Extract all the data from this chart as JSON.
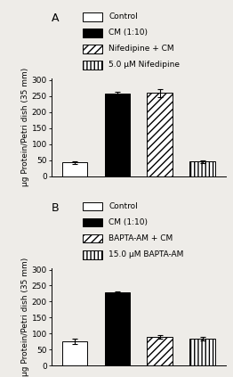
{
  "panel_A": {
    "label": "A",
    "values": [
      43,
      257,
      260,
      45
    ],
    "errors": [
      4,
      5,
      13,
      5
    ],
    "ylim": [
      0,
      305
    ],
    "yticks": [
      0,
      50,
      100,
      150,
      200,
      250,
      300
    ],
    "ylabel": "μg Protein/Petri dish (35 mm)",
    "legend_labels": [
      "Control",
      "CM (1:10)",
      "Nifedipine + CM",
      "5.0 μM Nifedipine"
    ],
    "bar_styles": [
      "open",
      "black",
      "hlines",
      "vlines"
    ]
  },
  "panel_B": {
    "label": "B",
    "values": [
      75,
      228,
      90,
      85
    ],
    "errors": [
      8,
      4,
      6,
      6
    ],
    "ylim": [
      0,
      305
    ],
    "yticks": [
      0,
      50,
      100,
      150,
      200,
      250,
      300
    ],
    "ylabel": "μg Protein/Petri dish (35 mm)",
    "legend_labels": [
      "Control",
      "CM (1:10)",
      "BAPTA-AM + CM",
      "15.0 μM BAPTA-AM"
    ],
    "bar_styles": [
      "open",
      "black",
      "hlines",
      "vlines"
    ]
  },
  "background_color": "#eeece8",
  "bar_width": 0.6,
  "fontsize": 6.5,
  "label_fontsize": 9
}
